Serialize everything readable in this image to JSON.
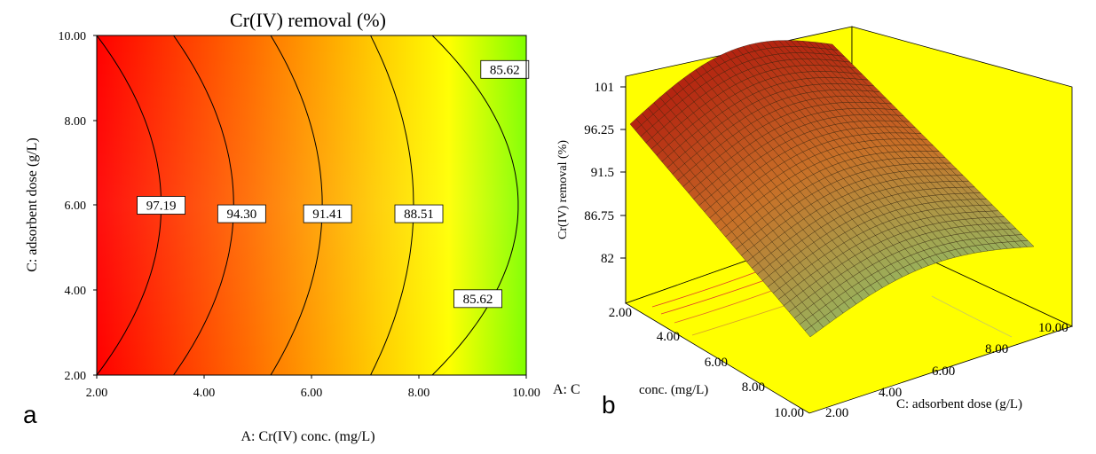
{
  "panel_a": {
    "letter": "a",
    "title": "Cr(IV) removal (%)",
    "xlabel": "A: Cr(IV) conc. (mg/L)",
    "ylabel": "C: adsorbent dose (g/L)",
    "x_ticks": [
      "2.00",
      "4.00",
      "6.00",
      "8.00",
      "10.00"
    ],
    "y_ticks": [
      "2.00",
      "4.00",
      "6.00",
      "8.00",
      "10.00"
    ],
    "clipped_label": "A: C"
  },
  "panel_b": {
    "letter": "b",
    "zlabel": "Cr(IV) removal (%)",
    "z_ticks": [
      "82",
      "86.75",
      "91.5",
      "96.25",
      "101"
    ],
    "a_ticks": [
      "2.00",
      "4.00",
      "6.00",
      "8.00",
      "10.00"
    ],
    "c_ticks": [
      "2.00",
      "4.00",
      "6.00",
      "8.00",
      "10.00"
    ],
    "a_axis_label": "conc. (mg/L)",
    "c_axis_label": "C: adsorbent dose (g/L)"
  },
  "colors": {
    "gradient": [
      "#ff0000",
      "#ff8000",
      "#ffff00",
      "#80ff00"
    ],
    "box_yellow": "#ffff00",
    "surface_high": "#b32310",
    "surface_low": "#9ab05a"
  },
  "chart_data": [
    {
      "type": "contour",
      "title": "Cr(IV) removal (%)",
      "xlabel": "A: Cr(IV) conc. (mg/L)",
      "ylabel": "C: adsorbent dose (g/L)",
      "xlim": [
        2,
        10
      ],
      "ylim": [
        2,
        10
      ],
      "contours": [
        {
          "level": 97.19,
          "label": "97.19",
          "label_at": [
            3.2,
            6.0
          ]
        },
        {
          "level": 94.3,
          "label": "94.30",
          "label_at": [
            4.7,
            5.8
          ]
        },
        {
          "level": 91.41,
          "label": "91.41",
          "label_at": [
            6.3,
            5.8
          ]
        },
        {
          "level": 88.51,
          "label": "88.51",
          "label_at": [
            8.0,
            5.8
          ]
        },
        {
          "level": 85.62,
          "label": "85.62",
          "label_at": [
            9.6,
            9.2
          ]
        },
        {
          "level": 85.62,
          "label": "85.62",
          "label_at": [
            9.1,
            3.8
          ]
        }
      ]
    },
    {
      "type": "surface",
      "zlabel": "Cr(IV) removal (%)",
      "xlabel": "A: Cr(IV) conc. (mg/L)",
      "ylabel": "C: adsorbent dose (g/L)",
      "zlim": [
        82,
        101
      ],
      "xlim": [
        2,
        10
      ],
      "ylim": [
        2,
        10
      ]
    }
  ]
}
